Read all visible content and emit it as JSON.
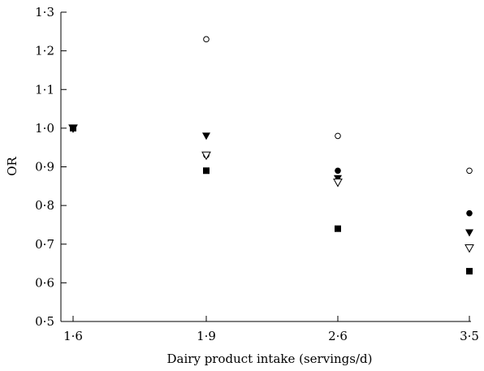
{
  "chart_data": {
    "type": "scatter",
    "title": "",
    "xlabel": "Dairy product intake (servings/d)",
    "ylabel": "OR",
    "categories": [
      "1·6",
      "1·9",
      "2·6",
      "3·5"
    ],
    "ylim": [
      0.5,
      1.3
    ],
    "yticks": [
      0.5,
      0.6,
      0.7,
      0.8,
      0.9,
      1.0,
      1.1,
      1.2,
      1.3
    ],
    "ytick_labels": [
      "0·5",
      "0·6",
      "0·7",
      "0·8",
      "0·9",
      "1·0",
      "1·1",
      "1·2",
      "1·3"
    ],
    "grid": false,
    "legend": "none",
    "series": [
      {
        "marker": "open-circle",
        "values": [
          1.0,
          1.23,
          0.98,
          0.89
        ]
      },
      {
        "marker": "filled-circle",
        "values": [
          1.0,
          0.93,
          0.89,
          0.78
        ]
      },
      {
        "marker": "filled-triangle-down",
        "values": [
          1.0,
          0.98,
          0.87,
          0.73
        ]
      },
      {
        "marker": "open-triangle-down",
        "values": [
          1.0,
          0.93,
          0.86,
          0.69
        ]
      },
      {
        "marker": "filled-square",
        "values": [
          1.0,
          0.89,
          0.74,
          0.63
        ]
      }
    ],
    "colors": {
      "marker": "#000000",
      "axis": "#000000"
    }
  }
}
